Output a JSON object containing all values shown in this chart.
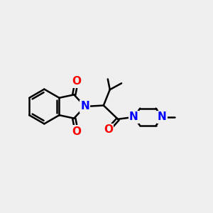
{
  "bg_color": "#efefef",
  "bond_color": "#000000",
  "N_color": "#0000ff",
  "O_color": "#ff0000",
  "bond_width": 1.8,
  "fig_size": [
    3.0,
    3.0
  ],
  "dpi": 100,
  "xlim": [
    0,
    10
  ],
  "ylim": [
    1.5,
    8.5
  ]
}
